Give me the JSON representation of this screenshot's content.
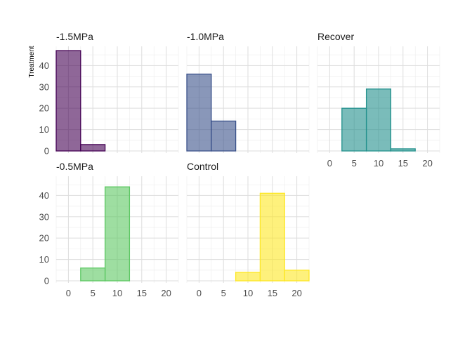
{
  "chart_data": {
    "type": "bar",
    "ylabel": "Treatment",
    "xlabel": "",
    "bin_edges": [
      -2.5,
      2.5,
      7.5,
      12.5,
      17.5,
      22.5
    ],
    "ylim": [
      0,
      48
    ],
    "xlim": [
      -2.5,
      22.5
    ],
    "y_ticks": [
      "0",
      "10",
      "20",
      "30",
      "40"
    ],
    "x_ticks": [
      "0",
      "5",
      "10",
      "15",
      "20"
    ],
    "grid": true,
    "panels": [
      {
        "name": "-1.5MPa",
        "color": "#440154",
        "values": [
          47,
          3,
          0,
          0,
          0
        ]
      },
      {
        "name": "-1.0MPa",
        "color": "#3B528B",
        "values": [
          36,
          14,
          0,
          0,
          0
        ]
      },
      {
        "name": "Recover",
        "color": "#21908C",
        "values": [
          0,
          20,
          29,
          1,
          0
        ]
      },
      {
        "name": "-0.5MPa",
        "color": "#5DC863",
        "values": [
          0,
          6,
          44,
          0,
          0
        ]
      },
      {
        "name": "Control",
        "color": "#FDE725",
        "values": [
          0,
          0,
          4,
          41,
          5
        ]
      }
    ]
  }
}
